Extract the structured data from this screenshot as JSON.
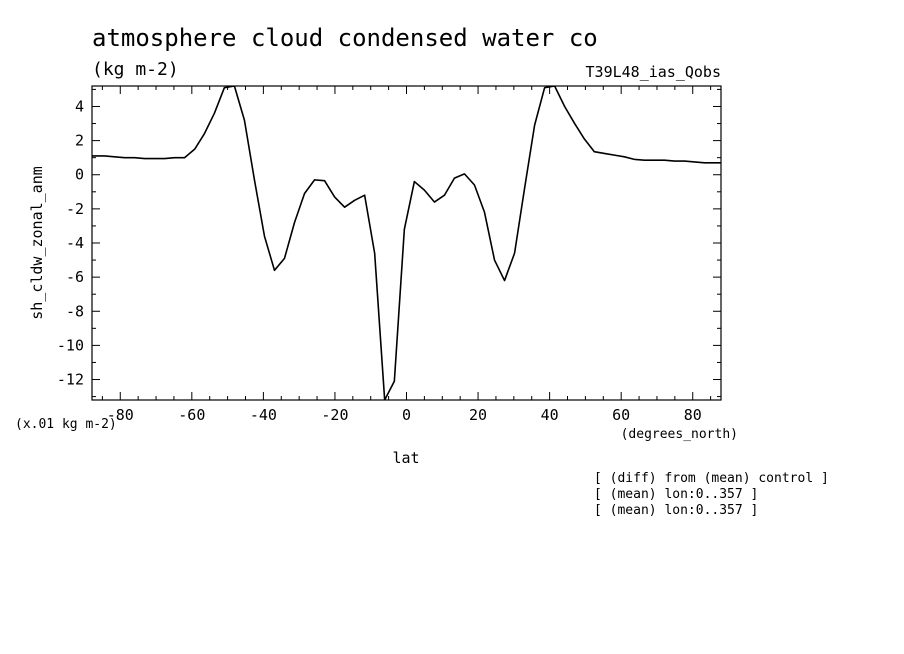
{
  "chart_data": {
    "type": "line",
    "title": "atmosphere cloud condensed water co",
    "units": "(kg m-2)",
    "run_label": "T39L48_ias_Qobs",
    "ylabel": "sh_cldw_zonal_anm",
    "xlabel": "lat",
    "x_units": "(degrees_north)",
    "y_scale_note": "(x.01 kg m-2)",
    "notes": [
      "[ (diff) from (mean) control ]",
      "[ (mean) lon:0..357 ]",
      "[ (mean) lon:0..357 ]"
    ],
    "xlim": [
      -87.9,
      87.9
    ],
    "ylim": [
      -13.2,
      5.2
    ],
    "x_ticks": [
      -80,
      -60,
      -40,
      -20,
      0,
      20,
      40,
      60,
      80
    ],
    "y_ticks": [
      4,
      2,
      0,
      -2,
      -4,
      -6,
      -8,
      -10,
      -12
    ],
    "grid": false,
    "series": [
      {
        "x": [
          -87.9,
          -84.4,
          -81.6,
          -78.8,
          -76.0,
          -73.2,
          -70.4,
          -67.6,
          -64.8,
          -62.0,
          -59.2,
          -56.5,
          -53.7,
          -50.9,
          -48.1,
          -45.3,
          -42.5,
          -39.7,
          -36.9,
          -34.1,
          -31.3,
          -28.5,
          -25.7,
          -22.9,
          -20.1,
          -17.3,
          -14.5,
          -11.7,
          -8.9,
          -6.1,
          -3.4,
          -0.6,
          2.2,
          5.0,
          7.8,
          10.6,
          13.4,
          16.2,
          19.0,
          21.8,
          24.6,
          27.4,
          30.2,
          33.0,
          35.8,
          38.6,
          41.4,
          44.2,
          47.0,
          49.7,
          52.5,
          55.3,
          58.1,
          60.9,
          63.7,
          66.5,
          69.3,
          72.1,
          74.9,
          77.7,
          80.5,
          83.3,
          87.9
        ],
        "y": [
          1.1,
          1.1,
          1.05,
          1.0,
          1.0,
          0.95,
          0.95,
          0.95,
          1.0,
          1.0,
          1.5,
          2.4,
          3.6,
          5.1,
          5.2,
          3.2,
          -0.3,
          -3.6,
          -5.6,
          -4.9,
          -2.8,
          -1.1,
          -0.3,
          -0.35,
          -1.3,
          -1.9,
          -1.5,
          -1.2,
          -4.6,
          -13.2,
          -12.1,
          -3.2,
          -0.4,
          -0.9,
          -1.6,
          -1.2,
          -0.2,
          0.05,
          -0.6,
          -2.2,
          -5.0,
          -6.2,
          -4.6,
          -0.8,
          2.9,
          5.1,
          5.2,
          4.0,
          3.0,
          2.1,
          1.35,
          1.25,
          1.15,
          1.05,
          0.9,
          0.85,
          0.85,
          0.85,
          0.8,
          0.8,
          0.75,
          0.7,
          0.7
        ]
      }
    ]
  }
}
